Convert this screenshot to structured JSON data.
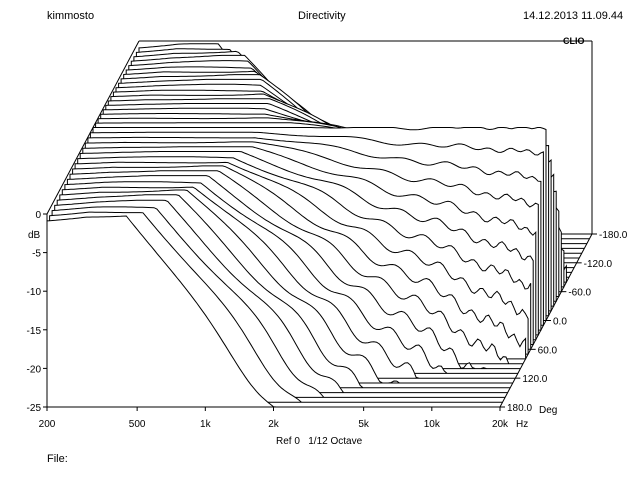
{
  "header": {
    "user": "kimmosto",
    "title": "Directivity",
    "timestamp": "14.12.2013 11.09.44"
  },
  "brand": "CLIO",
  "footer": {
    "reference": "Ref 0   1/12 Octave",
    "file_label": "File:"
  },
  "chart_data": {
    "type": "waterfall",
    "title": "Directivity",
    "xlabel": "Hz",
    "ylabel": "dB",
    "zlabel": "Deg",
    "x_scale": "log",
    "xlim": [
      200,
      20000
    ],
    "ylim": [
      -25,
      0
    ],
    "zlim": [
      180,
      -180
    ],
    "x_ticks": [
      200,
      500,
      1000,
      2000,
      5000,
      10000,
      20000
    ],
    "x_tick_labels": [
      "200",
      "500",
      "1k",
      "2k",
      "5k",
      "10k",
      "20k"
    ],
    "y_ticks": [
      0,
      -5,
      -10,
      -15,
      -20,
      -25
    ],
    "y_tick_labels": [
      "0",
      "-5",
      "-10",
      "-15",
      "-20",
      "-25"
    ],
    "z_ticks": [
      180,
      120,
      60,
      0,
      -60,
      -120,
      -180
    ],
    "z_tick_labels": [
      "180.0",
      "120.0",
      "60.0",
      "0.0",
      "-60.0",
      "-120.0",
      "-180.0"
    ],
    "angle_step_deg": 10,
    "series_count": 37,
    "series_note": "one response curve per 10 degree angle; on-axis curve near 0 dB flat to 20k, off-axis curves roll off above ~700 Hz"
  }
}
